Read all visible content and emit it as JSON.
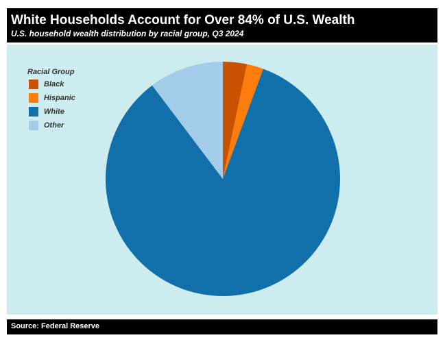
{
  "header": {
    "title": "White Households Account for Over 84% of U.S. Wealth",
    "subtitle": "U.S. household wealth distribution by racial group, Q3 2024"
  },
  "legend": {
    "title": "Racial Group",
    "items": [
      {
        "label": "Black",
        "color": "#c85200"
      },
      {
        "label": "Hispanic",
        "color": "#fc7d0b"
      },
      {
        "label": "White",
        "color": "#1170aa"
      },
      {
        "label": "Other",
        "color": "#a3cce9"
      }
    ]
  },
  "footer": {
    "source": "Source: Federal Reserve"
  },
  "colors": {
    "panel_bg": "#cdecef",
    "header_bg": "#000000"
  },
  "chart_data": {
    "type": "pie",
    "title": "White Households Account for Over 84% of U.S. Wealth",
    "subtitle": "U.S. household wealth distribution by racial group, Q3 2024",
    "categories": [
      "Black",
      "Hispanic",
      "White",
      "Other"
    ],
    "values": [
      3.3,
      2.3,
      84.1,
      10.3
    ],
    "unit": "% of total household wealth",
    "colors": [
      "#c85200",
      "#fc7d0b",
      "#1170aa",
      "#a3cce9"
    ],
    "start_angle": "12 o'clock, clockwise",
    "legend_position": "top-left",
    "source": "Source: Federal Reserve"
  }
}
